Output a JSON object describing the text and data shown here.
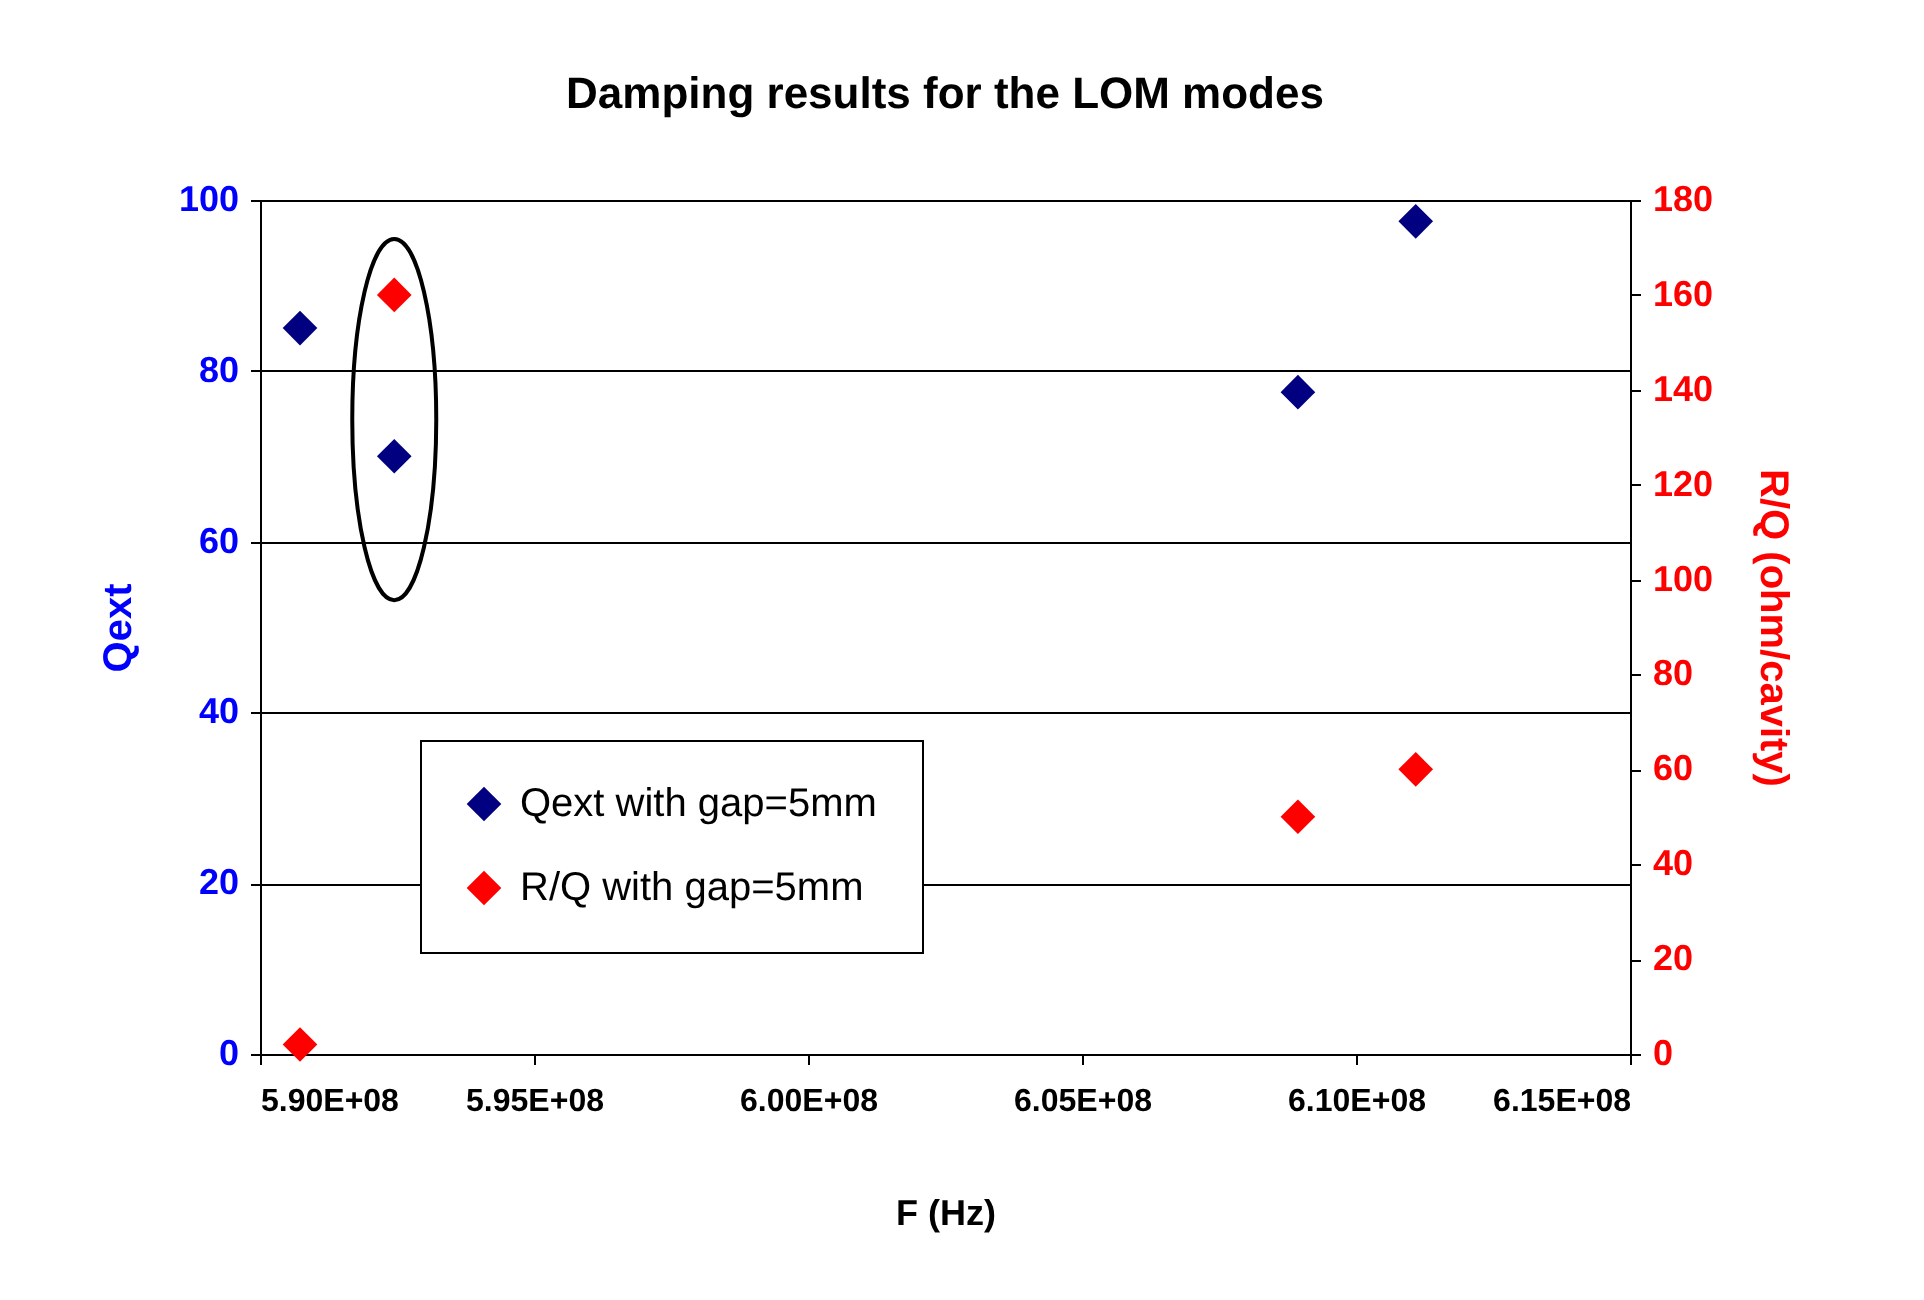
{
  "chart_data": {
    "type": "scatter",
    "title": "Damping results for the LOM modes",
    "xlabel": "F (Hz)",
    "ylabel": "Qext",
    "y2label": "R/Q (ohm/cavity)",
    "x": [
      590730000,
      592450000,
      608940000,
      611090000
    ],
    "series": [
      {
        "name": "Qext with gap=5mm",
        "color": "#000080",
        "values": [
          85,
          70,
          77.5,
          97.5
        ]
      },
      {
        "name": "R/Q with gap=5mm",
        "color": "#ff0000",
        "axis": "y2",
        "values": [
          2,
          160,
          50,
          60
        ]
      }
    ],
    "xlim": [
      590000000,
      615000000
    ],
    "xticks": [
      {
        "value": 590000000,
        "label": "5.90E+08"
      },
      {
        "value": 595000000,
        "label": "5.95E+08"
      },
      {
        "value": 600000000,
        "label": "6.00E+08"
      },
      {
        "value": 605000000,
        "label": "6.05E+08"
      },
      {
        "value": 610000000,
        "label": "6.10E+08"
      },
      {
        "value": 615000000,
        "label": "6.15E+08"
      }
    ],
    "ylim": [
      0,
      100
    ],
    "yticks": [
      0,
      20,
      40,
      60,
      80,
      100
    ],
    "y2lim": [
      0,
      180
    ],
    "y2ticks": [
      0,
      20,
      40,
      60,
      80,
      100,
      120,
      140,
      160,
      180
    ],
    "grid": "y",
    "legend": "bottom left",
    "marker": "diamond"
  }
}
